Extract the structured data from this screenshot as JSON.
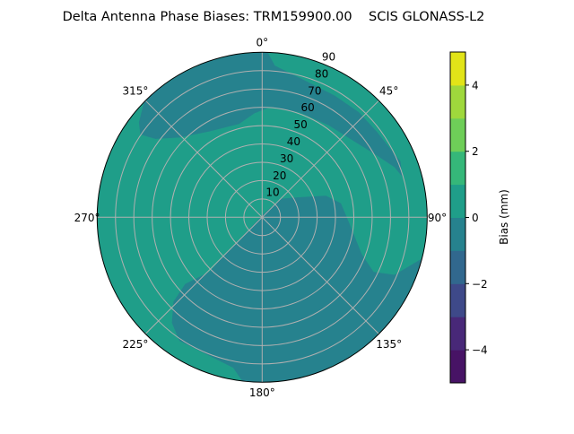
{
  "chart_data": {
    "type": "polar-contour",
    "title": "Delta Antenna Phase Biases: TRM159900.00    SCIS GLONASS-L2",
    "angular_ticks": [
      {
        "deg": 0,
        "label": "0°"
      },
      {
        "deg": 45,
        "label": "45°"
      },
      {
        "deg": 90,
        "label": "90°"
      },
      {
        "deg": 135,
        "label": "135°"
      },
      {
        "deg": 180,
        "label": "180°"
      },
      {
        "deg": 225,
        "label": "225°"
      },
      {
        "deg": 270,
        "label": "270°"
      },
      {
        "deg": 315,
        "label": "315°"
      }
    ],
    "radial_ticks": [
      10,
      20,
      30,
      40,
      50,
      60,
      70,
      80,
      90
    ],
    "radial_tick_labels": [
      "10",
      "20",
      "30",
      "40",
      "50",
      "60",
      "70",
      "80",
      "90"
    ],
    "radial_range": [
      0,
      90
    ],
    "theta_direction": "clockwise",
    "theta_zero": "top",
    "grid": true,
    "background_level": {
      "range": [
        0,
        1
      ],
      "color": "#1f9e89"
    },
    "regions": [
      {
        "name": "south-east-negative-region",
        "range": [
          -1,
          0
        ],
        "color": "#26828e",
        "points_az_zen": [
          [
            30,
            3
          ],
          [
            228,
            8
          ],
          [
            224.8,
            31.7
          ],
          [
            224,
            41.5
          ],
          [
            229.1,
            55.5
          ],
          [
            226.4,
            66.9
          ],
          [
            220.5,
            75.8
          ],
          [
            213.8,
            81.1
          ],
          [
            198.3,
            81.3
          ],
          [
            190.9,
            83.6
          ],
          [
            186.9,
            90
          ],
          [
            180,
            90
          ],
          [
            170,
            90
          ],
          [
            160,
            90
          ],
          [
            150,
            90
          ],
          [
            140,
            90
          ],
          [
            130,
            90
          ],
          [
            120,
            90
          ],
          [
            110,
            90
          ],
          [
            104.5,
            90
          ],
          [
            113.5,
            78.8
          ],
          [
            116.1,
            67.7
          ],
          [
            110.3,
            57.9
          ],
          [
            94.5,
            47.9
          ],
          [
            79.9,
            43.6
          ],
          [
            71.3,
            36.7
          ],
          [
            61.4,
            22.8
          ],
          [
            45.4,
            14.4
          ]
        ]
      },
      {
        "name": "north-band-negative-region",
        "range": [
          -1,
          0
        ],
        "color": "#26828e",
        "points_az_zen": [
          [
            314.3,
            90
          ],
          [
            307.6,
            84.8
          ],
          [
            304.2,
            80.3
          ],
          [
            306.3,
            72.2
          ],
          [
            313.9,
            62.7
          ],
          [
            328.3,
            55
          ],
          [
            346.1,
            52.4
          ],
          [
            355.6,
            56.8
          ],
          [
            363.6,
            60
          ],
          [
            379.3,
            60.8
          ],
          [
            396,
            61.9
          ],
          [
            409.7,
            64.8
          ],
          [
            421.6,
            71
          ],
          [
            429.3,
            77.2
          ],
          [
            433.7,
            79.5
          ],
          [
            428,
            81.4
          ],
          [
            413.2,
            78
          ],
          [
            402.6,
            77.9
          ],
          [
            390.8,
            77.3
          ],
          [
            374.8,
            78.8
          ],
          [
            364.8,
            83
          ],
          [
            361.9,
            90
          ],
          [
            360,
            90
          ],
          [
            350,
            90
          ],
          [
            340,
            90
          ],
          [
            330,
            90
          ],
          [
            320,
            90
          ]
        ]
      }
    ],
    "colorbar": {
      "label": "Bias (mm)",
      "range": [
        -5,
        5
      ],
      "levels": [
        -5,
        -4,
        -3,
        -2,
        -1,
        0,
        1,
        2,
        3,
        4,
        5
      ],
      "colors": [
        "#471365",
        "#482878",
        "#3e4989",
        "#31688e",
        "#26828e",
        "#1f9e89",
        "#35b779",
        "#6ece58",
        "#9fd83c",
        "#e2e418"
      ],
      "ticks": [
        -4,
        -2,
        0,
        2,
        4
      ],
      "tick_labels": [
        "−4",
        "−2",
        "0",
        "2",
        "4"
      ]
    }
  }
}
